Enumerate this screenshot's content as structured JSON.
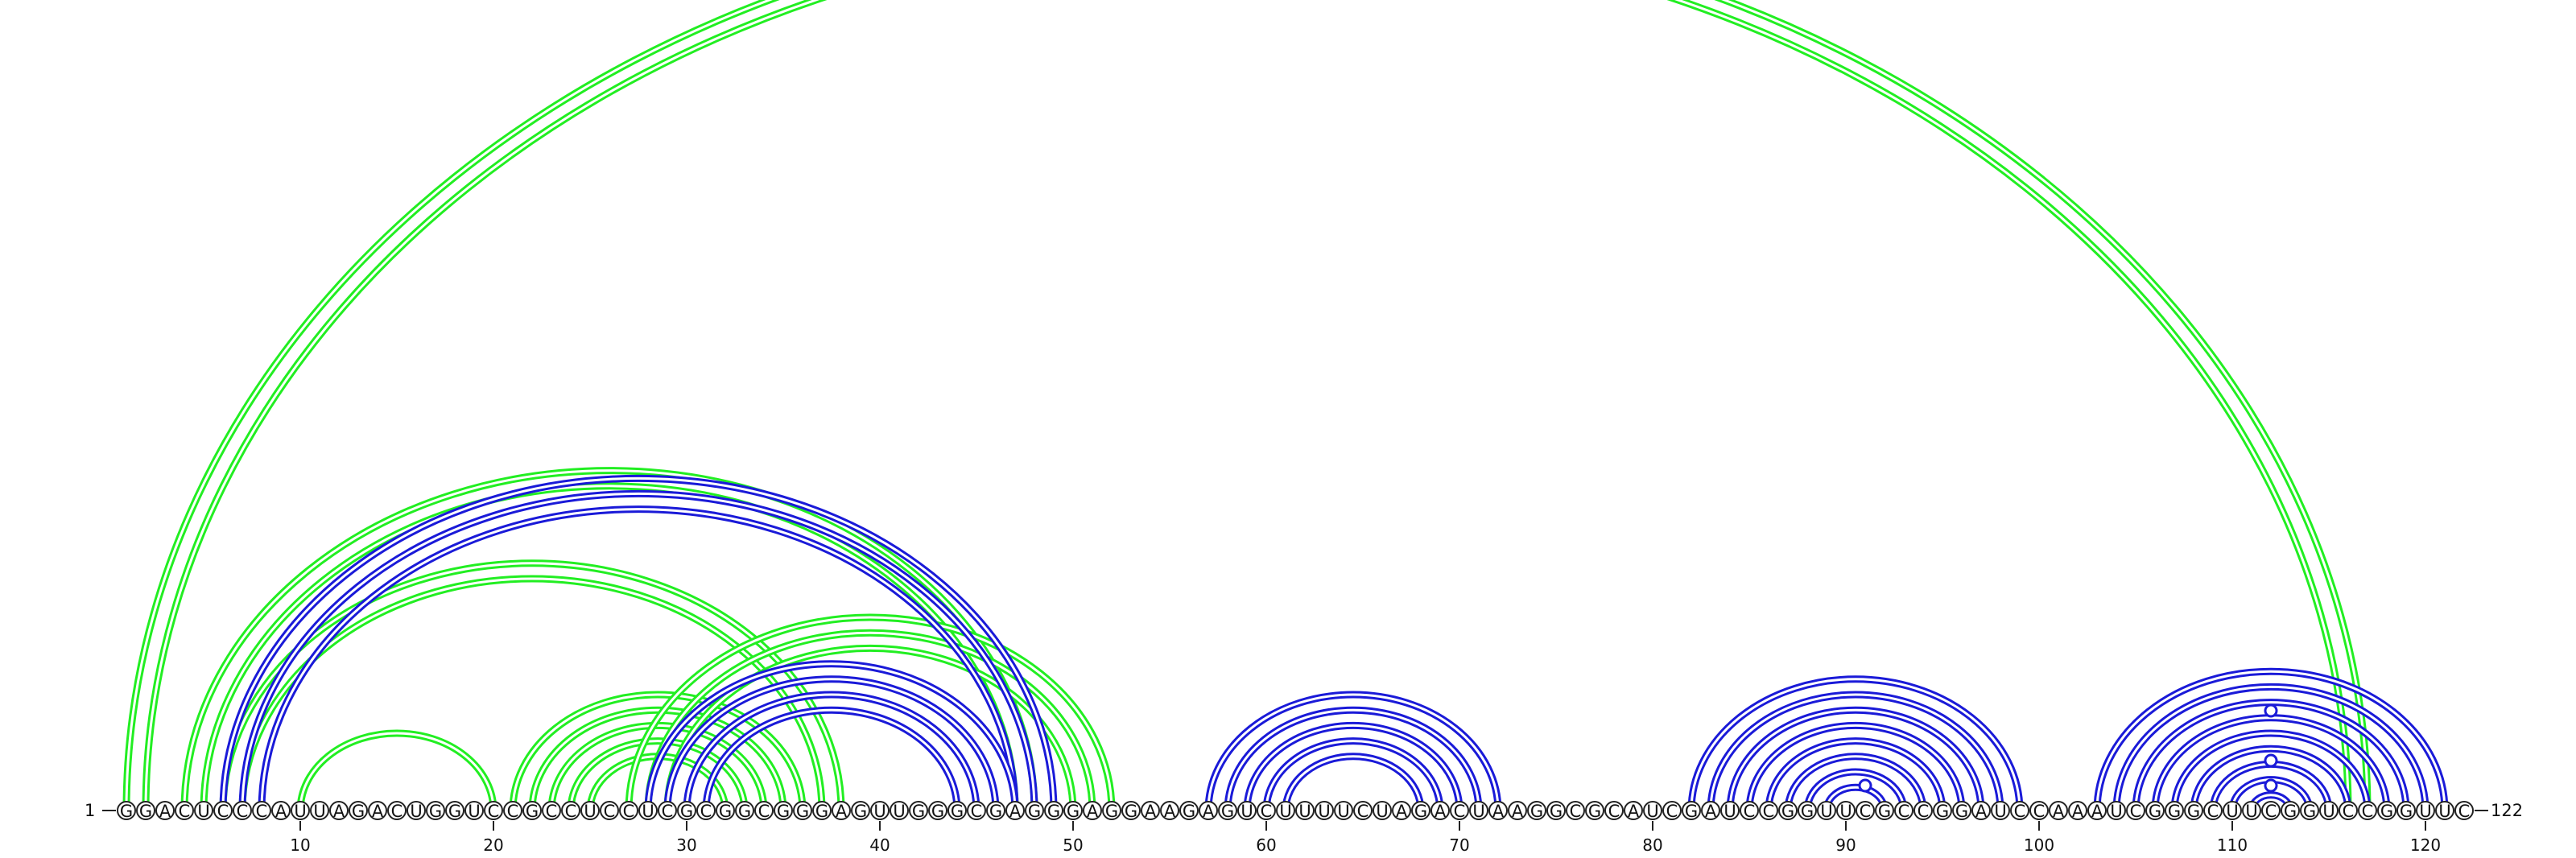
{
  "chart_data": {
    "type": "arc-diagram",
    "sequence": "GGACUCCCAUUAGACUGGUCCGCCUCCUCGCGGCGGGAGUUGGGCGAGGGAGGAAGAGUCUUUUCUAGACUAAGGCGCAUCGAUCCGGUUCGCCGGAUCCAAAUCGGGCUUCGGUCCGGUUC",
    "length": 122,
    "start_label": "1",
    "end_label": "122",
    "ticks": [
      10,
      20,
      30,
      40,
      50,
      60,
      70,
      80,
      90,
      100,
      110,
      120
    ],
    "colors": {
      "green": "#22ee22",
      "blue": "#1a1ad8",
      "node_stroke": "#222222"
    },
    "series": [
      {
        "color": "green",
        "pairs": [
          [
            1,
            117
          ],
          [
            2,
            116
          ],
          [
            4,
            48
          ],
          [
            5,
            47
          ],
          [
            6,
            38
          ],
          [
            7,
            37
          ],
          [
            10,
            20
          ],
          [
            21,
            36
          ],
          [
            22,
            35
          ],
          [
            23,
            34
          ],
          [
            24,
            33
          ],
          [
            25,
            32
          ],
          [
            27,
            52
          ],
          [
            28,
            51
          ],
          [
            29,
            50
          ]
        ]
      },
      {
        "color": "blue",
        "pairs": [
          [
            6,
            49
          ],
          [
            7,
            48
          ],
          [
            8,
            47
          ],
          [
            28,
            47
          ],
          [
            29,
            46
          ],
          [
            30,
            45
          ],
          [
            31,
            44
          ],
          [
            57,
            72
          ],
          [
            58,
            71
          ],
          [
            59,
            70
          ],
          [
            60,
            69
          ],
          [
            61,
            68
          ],
          [
            82,
            99
          ],
          [
            83,
            98
          ],
          [
            84,
            97
          ],
          [
            85,
            96
          ],
          [
            86,
            95
          ],
          [
            87,
            94
          ],
          [
            88,
            93
          ],
          [
            89,
            92
          ],
          [
            103,
            121
          ],
          [
            104,
            120
          ],
          [
            105,
            119
          ],
          [
            106,
            118
          ],
          [
            107,
            117
          ],
          [
            108,
            116
          ],
          [
            109,
            115
          ],
          [
            110,
            114
          ],
          [
            111,
            113
          ]
        ]
      }
    ],
    "markers": [
      {
        "position": 91,
        "level": 1
      },
      {
        "position": 112,
        "level": 1
      },
      {
        "position": 112,
        "level": 2
      },
      {
        "position": 112,
        "level": 4
      }
    ]
  }
}
